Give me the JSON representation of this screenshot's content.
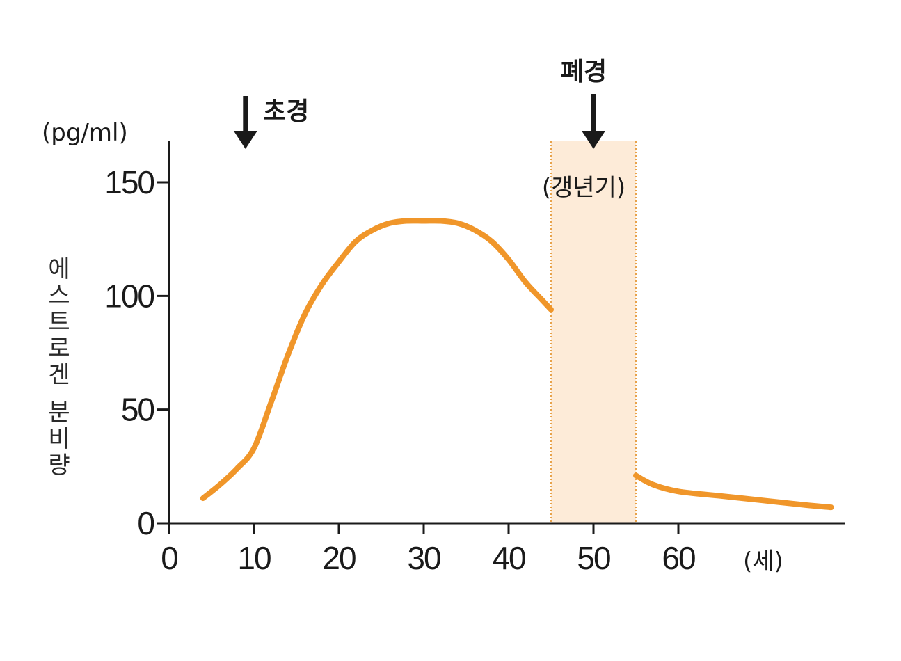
{
  "chart_data": {
    "type": "line",
    "ylabel": "에스트로겐 분비량",
    "yunit": "(pg/ml)",
    "xunit": "(세)",
    "xlim": [
      0,
      82
    ],
    "ylim": [
      0,
      165
    ],
    "xticks": [
      0,
      10,
      20,
      30,
      40,
      50,
      60
    ],
    "yticks": [
      0,
      50,
      100,
      150
    ],
    "grid": false,
    "series": [
      {
        "color": "#f0962a",
        "segments": [
          {
            "x": [
              4,
              6,
              8,
              10,
              12,
              14,
              16,
              18,
              20,
              22,
              24,
              26,
              28,
              30,
              32,
              34,
              36,
              38,
              40,
              42,
              44,
              45
            ],
            "y": [
              11,
              17,
              24,
              33,
              53,
              74,
              92,
              105,
              115,
              124,
              129,
              132,
              133,
              133,
              133,
              132,
              129,
              124,
              116,
              106,
              98,
              94
            ]
          },
          {
            "x": [
              55,
              57,
              60,
              65,
              70,
              75,
              78
            ],
            "y": [
              21,
              17,
              14,
              12,
              10,
              8,
              7
            ]
          }
        ]
      }
    ],
    "menopause_band": {
      "from": 45,
      "to": 55,
      "color": "#fdebd8",
      "label": "(갱년기)"
    },
    "annotations": [
      {
        "x": 9,
        "label": "초경"
      },
      {
        "x": 50,
        "label": "폐경"
      }
    ]
  }
}
